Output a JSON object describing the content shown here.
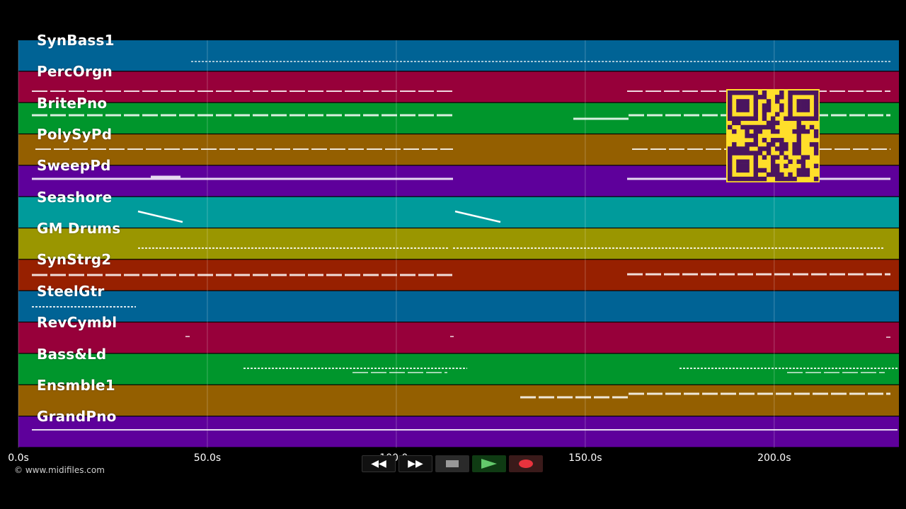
{
  "tracks": [
    {
      "name": "SynBass1",
      "color": "#006395"
    },
    {
      "name": "PercOrgn",
      "color": "#97003a"
    },
    {
      "name": "BritePno",
      "color": "#00962c"
    },
    {
      "name": "PolySyPd",
      "color": "#945f00"
    },
    {
      "name": "SweepPd",
      "color": "#5e009b"
    },
    {
      "name": "Seashore",
      "color": "#009b9b"
    },
    {
      "name": "GM Drums",
      "color": "#9a9600"
    },
    {
      "name": "SynStrg2",
      "color": "#972000"
    },
    {
      "name": "SteelGtr",
      "color": "#006395"
    },
    {
      "name": "RevCymbl",
      "color": "#97003a"
    },
    {
      "name": "Bass&Ld",
      "color": "#00962c"
    },
    {
      "name": "Ensmble1",
      "color": "#945f00"
    },
    {
      "name": "GrandPno",
      "color": "#5e009b"
    }
  ],
  "timeline": {
    "duration_s": 233,
    "ticks": [
      "0.0s",
      "50.0s",
      "100.0s",
      "150.0s",
      "200.0s"
    ]
  },
  "copyright": "© www.midifiles.com",
  "transport": {
    "rewind_label": "◀◀",
    "forward_label": "▶▶"
  },
  "qr_code": {
    "colors": {
      "fg": "#4a145f",
      "bg": "#ffde2a"
    }
  }
}
